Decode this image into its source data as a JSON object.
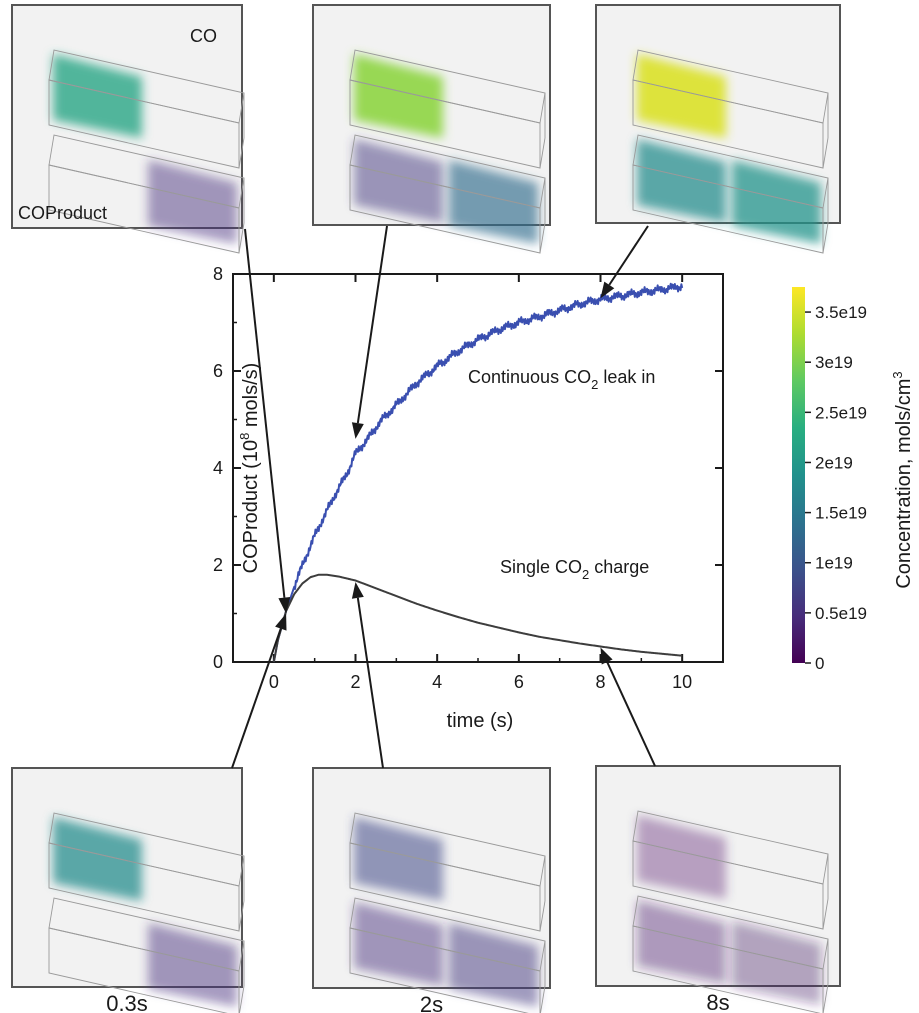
{
  "chart_data": {
    "type": "line",
    "xlabel": "time (s)",
    "ylabel_main": "COProduct (10",
    "ylabel_exp": "8",
    "ylabel_unit": " mols/s)",
    "xlim": [
      -1,
      11
    ],
    "ylim": [
      0,
      8
    ],
    "xticks": [
      "0",
      "2",
      "4",
      "6",
      "8",
      "10"
    ],
    "yticks": [
      "0",
      "2",
      "4",
      "6",
      "8"
    ],
    "series": [
      {
        "label_pre": "Continuous CO",
        "label_sub": "2",
        "label_post": " leak in",
        "color": "#3a4fb0",
        "x": [
          0,
          0.1,
          0.2,
          0.3,
          0.4,
          0.5,
          0.6,
          0.8,
          1.0,
          1.2,
          1.5,
          1.8,
          2.0,
          2.3,
          2.6,
          3.0,
          3.5,
          4.0,
          4.5,
          5.0,
          5.5,
          6.0,
          6.5,
          7.0,
          7.5,
          8.0,
          8.5,
          9.0,
          9.5,
          10.0
        ],
        "y": [
          0.0,
          0.45,
          0.75,
          1.05,
          1.3,
          1.55,
          1.78,
          2.2,
          2.6,
          2.95,
          3.45,
          3.9,
          4.3,
          4.6,
          4.95,
          5.3,
          5.75,
          6.1,
          6.4,
          6.65,
          6.85,
          7.0,
          7.12,
          7.25,
          7.38,
          7.48,
          7.55,
          7.62,
          7.68,
          7.75
        ],
        "noise": true
      },
      {
        "label_pre": "Single CO",
        "label_sub": "2",
        "label_post": " charge",
        "color": "#3d3d3d",
        "x": [
          0,
          0.1,
          0.2,
          0.3,
          0.5,
          0.7,
          0.9,
          1.1,
          1.3,
          1.6,
          2.0,
          2.5,
          3.0,
          3.5,
          4.0,
          4.5,
          5.0,
          5.5,
          6.0,
          6.5,
          7.0,
          7.5,
          8.0,
          8.5,
          9.0,
          9.5,
          10.0
        ],
        "y": [
          0.0,
          0.45,
          0.75,
          1.05,
          1.4,
          1.62,
          1.75,
          1.8,
          1.8,
          1.76,
          1.68,
          1.52,
          1.36,
          1.2,
          1.06,
          0.93,
          0.81,
          0.71,
          0.61,
          0.52,
          0.45,
          0.38,
          0.32,
          0.26,
          0.21,
          0.17,
          0.13
        ],
        "noise": false
      }
    ],
    "colorbar": {
      "title_main": "Concentration, mols/cm",
      "title_sup": "3",
      "range": [
        0,
        3.75e+19
      ],
      "ticks": [
        {
          "value": 0,
          "label": "0"
        },
        {
          "value": 5e+18,
          "label": "0.5e19"
        },
        {
          "value": 1e+19,
          "label": "1e19"
        },
        {
          "value": 1.5e+19,
          "label": "1.5e19"
        },
        {
          "value": 2e+19,
          "label": "2e19"
        },
        {
          "value": 2.5e+19,
          "label": "2.5e19"
        },
        {
          "value": 3e+19,
          "label": "3e19"
        },
        {
          "value": 3.5e+19,
          "label": "3.5e19"
        }
      ],
      "colormap": [
        "#440154",
        "#472d7b",
        "#3b528b",
        "#2c728e",
        "#21918c",
        "#28ae80",
        "#5ec962",
        "#addc30",
        "#fde725"
      ]
    },
    "snapshot_panels": [
      {
        "id": "top-0.3s",
        "row": "top",
        "series": "continuous",
        "x": 0.3,
        "y": 1.0,
        "co_value": 2.2e+19,
        "coproduct_values": [
          0.0,
          5e+18
        ],
        "label_co": "CO",
        "label_coproduct": "COProduct"
      },
      {
        "id": "top-2s",
        "row": "top",
        "series": "continuous",
        "x": 2.0,
        "y": 4.6,
        "co_value": 3.1e+19,
        "coproduct_values": [
          6e+18,
          1.3e+19
        ]
      },
      {
        "id": "top-8s",
        "row": "top",
        "series": "continuous",
        "x": 8.0,
        "y": 7.5,
        "co_value": 3.55e+19,
        "coproduct_values": [
          1.8e+19,
          1.9e+19
        ]
      },
      {
        "id": "bottom-0.3s",
        "row": "bottom",
        "series": "single",
        "x": 0.3,
        "y": 1.0,
        "co_value": 1.8e+19,
        "coproduct_values": [
          0.0,
          5e+18
        ],
        "time_label": "0.3s"
      },
      {
        "id": "bottom-2s",
        "row": "bottom",
        "series": "single",
        "x": 2.0,
        "y": 1.65,
        "co_value": 8e+18,
        "coproduct_values": [
          5e+18,
          6e+18
        ],
        "time_label": "2s"
      },
      {
        "id": "bottom-8s",
        "row": "bottom",
        "series": "single",
        "x": 8.0,
        "y": 0.3,
        "co_value": 1.5e+18,
        "coproduct_values": [
          3e+18,
          2e+18
        ],
        "time_label": "8s"
      }
    ]
  }
}
